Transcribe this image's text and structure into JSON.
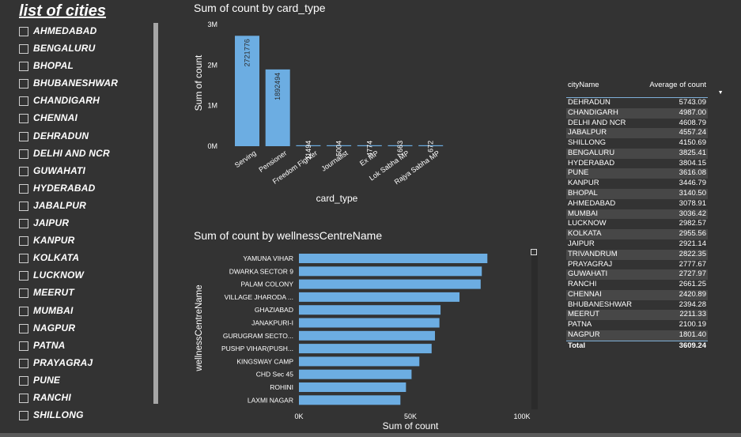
{
  "slicer": {
    "title": "list of cities",
    "items": [
      "AHMEDABAD",
      "BENGALURU",
      "BHOPAL",
      "BHUBANESHWAR",
      "CHANDIGARH",
      "CHENNAI",
      "DEHRADUN",
      "DELHI AND NCR",
      "GUWAHATI",
      "HYDERABAD",
      "JABALPUR",
      "JAIPUR",
      "KANPUR",
      "KOLKATA",
      "LUCKNOW",
      "MEERUT",
      "MUMBAI",
      "NAGPUR",
      "PATNA",
      "PRAYAGRAJ",
      "PUNE",
      "RANCHI",
      "SHILLONG"
    ]
  },
  "colors": {
    "bar": "#6cade2",
    "text": "#ffffff",
    "background": "#333333"
  },
  "chart_data": [
    {
      "type": "bar",
      "title": "Sum of count by card_type",
      "xlabel": "card_type",
      "ylabel": "Sum of count",
      "categories": [
        "Serving",
        "Pensioner",
        "Freedom Fighter",
        "Journalist",
        "Ex MP",
        "Lok Sabha MP",
        "Rajya Sabha MP"
      ],
      "values": [
        2721776,
        1892494,
        11494,
        5004,
        4774,
        1663,
        672
      ],
      "data_labels": [
        "2721776",
        "1892494",
        "11494",
        "5004",
        "4774",
        "1663",
        "672"
      ],
      "y_ticks": [
        "0M",
        "1M",
        "2M",
        "3M"
      ],
      "ylim": [
        0,
        3000000
      ],
      "grid": false
    },
    {
      "type": "bar",
      "orientation": "horizontal",
      "title": "Sum of count by wellnessCentreName",
      "xlabel": "Sum of count",
      "ylabel": "wellnessCentreName",
      "categories": [
        "YAMUNA VIHAR",
        "DWARKA SECTOR 9",
        "PALAM COLONY",
        "VILLAGE JHARODA ...",
        "GHAZIABAD",
        "JANAKPURI-I",
        "GURUGRAM SECTO...",
        "PUSHP VIHAR(PUSH...",
        "KINGSWAY CAMP",
        "CHD Sec 45",
        "ROHINI",
        "LAXMI NAGAR"
      ],
      "values": [
        84500,
        82000,
        81500,
        72000,
        63500,
        63000,
        61000,
        59500,
        54000,
        50500,
        48000,
        45500
      ],
      "x_ticks": [
        "0K",
        "50K",
        "100K"
      ],
      "xlim": [
        0,
        100000
      ],
      "grid": false
    },
    {
      "type": "table",
      "columns": [
        "cityName",
        "Average of count"
      ],
      "rows": [
        [
          "DEHRADUN",
          "5743.09"
        ],
        [
          "CHANDIGARH",
          "4987.00"
        ],
        [
          "DELHI AND NCR",
          "4608.79"
        ],
        [
          "JABALPUR",
          "4557.24"
        ],
        [
          "SHILLONG",
          "4150.69"
        ],
        [
          "BENGALURU",
          "3825.41"
        ],
        [
          "HYDERABAD",
          "3804.15"
        ],
        [
          "PUNE",
          "3616.08"
        ],
        [
          "KANPUR",
          "3446.79"
        ],
        [
          "BHOPAL",
          "3140.50"
        ],
        [
          "AHMEDABAD",
          "3078.91"
        ],
        [
          "MUMBAI",
          "3036.42"
        ],
        [
          "LUCKNOW",
          "2982.57"
        ],
        [
          "KOLKATA",
          "2955.56"
        ],
        [
          "JAIPUR",
          "2921.14"
        ],
        [
          "TRIVANDRUM",
          "2822.35"
        ],
        [
          "PRAYAGRAJ",
          "2777.67"
        ],
        [
          "GUWAHATI",
          "2727.97"
        ],
        [
          "RANCHI",
          "2661.25"
        ],
        [
          "CHENNAI",
          "2420.89"
        ],
        [
          "BHUBANESHWAR",
          "2394.28"
        ],
        [
          "MEERUT",
          "2211.33"
        ],
        [
          "PATNA",
          "2100.19"
        ],
        [
          "NAGPUR",
          "1801.40"
        ]
      ],
      "total": [
        "Total",
        "3609.24"
      ],
      "sort_icon": "sort-descending-icon"
    }
  ]
}
